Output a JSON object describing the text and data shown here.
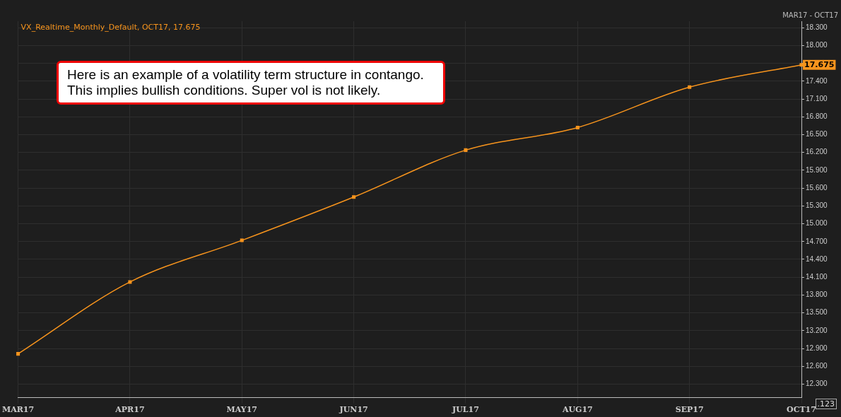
{
  "chart_data": {
    "type": "line",
    "subtitle": "MAR17 - OCT17",
    "categories": [
      "MAR17",
      "APR17",
      "MAY17",
      "JUN17",
      "JUL17",
      "AUG17",
      "SEP17",
      "OCT17"
    ],
    "series": [
      {
        "name": "VX_Realtime_Monthly_Default, OCT17, 17.675",
        "color": "#f7941d",
        "values": [
          12.81,
          14.02,
          14.72,
          15.45,
          16.24,
          16.62,
          17.3,
          17.675
        ],
        "value_labels": [
          null,
          null,
          null,
          null,
          null,
          null,
          null,
          "17.675"
        ]
      }
    ],
    "ylim": [
      12.07,
      18.41
    ],
    "yticks": [
      {
        "value": 12.3,
        "label": "12.300"
      },
      {
        "value": 12.6,
        "label": "12.600"
      },
      {
        "value": 12.9,
        "label": "12.900"
      },
      {
        "value": 13.2,
        "label": "13.200"
      },
      {
        "value": 13.5,
        "label": "13.500"
      },
      {
        "value": 13.8,
        "label": "13.800"
      },
      {
        "value": 14.1,
        "label": "14.100"
      },
      {
        "value": 14.4,
        "label": "14.400"
      },
      {
        "value": 14.7,
        "label": "14.700"
      },
      {
        "value": 15,
        "label": "15.000"
      },
      {
        "value": 15.3,
        "label": "15.300"
      },
      {
        "value": 15.6,
        "label": "15.600"
      },
      {
        "value": 15.9,
        "label": "15.900"
      },
      {
        "value": 16.2,
        "label": "16.200"
      },
      {
        "value": 16.5,
        "label": "16.500"
      },
      {
        "value": 16.8,
        "label": "16.800"
      },
      {
        "value": 17.1,
        "label": "17.100"
      },
      {
        "value": 17.4,
        "label": "17.400"
      },
      {
        "value": 17.7,
        "label": null
      },
      {
        "value": 18,
        "label": "18.000"
      },
      {
        "value": 18.3,
        "label": "18.300"
      }
    ],
    "grid": true,
    "legend": "top left",
    "marker": "square",
    "line_style": "solid",
    "annotations": [
      "Here is an example of a volatility term structure in contango. This implies bullish conditions. Super vol is not likely.",
      ".123"
    ]
  }
}
